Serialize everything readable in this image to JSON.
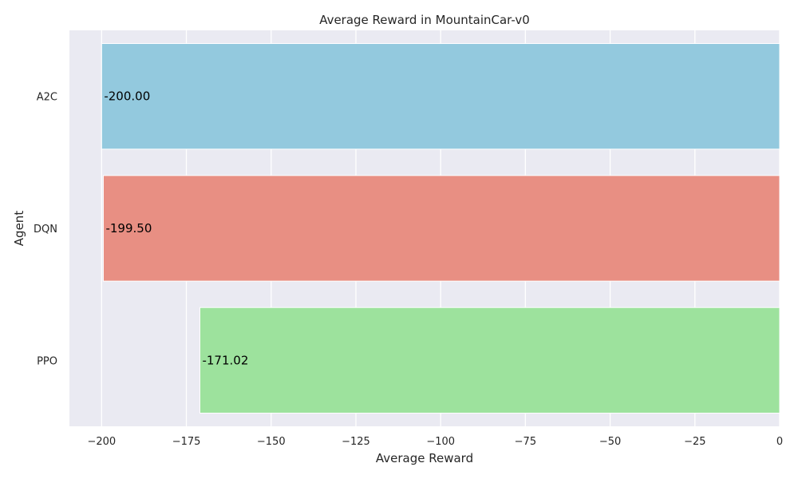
{
  "chart_data": {
    "type": "bar",
    "orientation": "horizontal",
    "title": "Average Reward in MountainCar-v0",
    "xlabel": "Average Reward",
    "ylabel": "Agent",
    "categories": [
      "A2C",
      "DQN",
      "PPO"
    ],
    "values": [
      -200.0,
      -199.5,
      -171.02
    ],
    "value_labels": [
      "-200.00",
      "-199.50",
      "-171.02"
    ],
    "bar_colors": [
      "#93c9de",
      "#e88f83",
      "#9de29d"
    ],
    "xlim": [
      -209.5,
      0
    ],
    "xticks": [
      -200,
      -175,
      -150,
      -125,
      -100,
      -75,
      -50,
      -25,
      0
    ],
    "xtick_labels": [
      "−200",
      "−175",
      "−150",
      "−125",
      "−100",
      "−75",
      "−50",
      "−25",
      "0"
    ],
    "grid": true,
    "background_color": "#eaeaf2"
  }
}
